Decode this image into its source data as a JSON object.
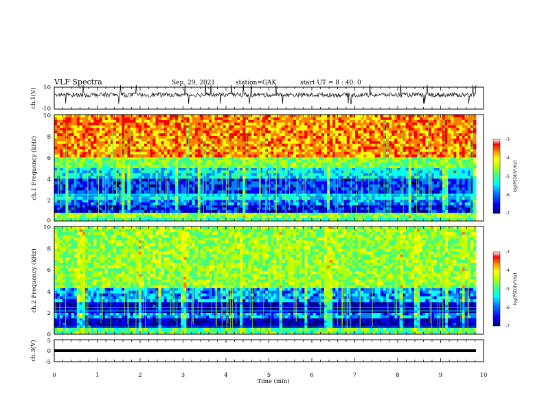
{
  "header": {
    "title": "VLF Spectra",
    "date": "Sep. 29, 2021",
    "station": "station=GAK",
    "start": "start UT = 8 : 40: 0"
  },
  "colors": {
    "spectrogram_scale": [
      "#00007f",
      "#0000ff",
      "#0080ff",
      "#00ffff",
      "#40ff80",
      "#c0ff00",
      "#ffff00",
      "#ff8000",
      "#ff0000",
      "#ffffff"
    ],
    "line": "#000000"
  },
  "chart_data": [
    {
      "type": "line",
      "name": "ch1-waveform",
      "ylabel": "ch.1(V)",
      "ylim": [
        -10,
        10
      ],
      "y_ticks": [
        "10",
        "-10"
      ],
      "x": [
        0,
        1,
        2,
        3,
        4,
        5,
        6,
        7,
        8,
        9,
        9.8
      ],
      "y": [
        3,
        3,
        3,
        3,
        3,
        3,
        3,
        3,
        3,
        3,
        3
      ]
    },
    {
      "type": "heatmap",
      "name": "ch1-spectrogram",
      "ylabel": "ch.1 Frequency (kHz)",
      "ylim": [
        0,
        10
      ],
      "y_ticks": [
        "0",
        "2",
        "4",
        "6",
        "8",
        "10"
      ],
      "colorbar": {
        "label": "log(PSD)(V²/Hz)",
        "range": [
          -7,
          -3
        ],
        "ticks": [
          "-3",
          "-4",
          "-5",
          "-6",
          "-7"
        ]
      },
      "bands_khz": [
        [
          0,
          0.3,
          -5.0
        ],
        [
          0.3,
          0.8,
          -4.6
        ],
        [
          0.8,
          1.5,
          -6.4
        ],
        [
          1.5,
          2.0,
          -6.0
        ],
        [
          2.0,
          2.6,
          -5.6
        ],
        [
          2.6,
          4.0,
          -6.2
        ],
        [
          4.0,
          5.0,
          -5.5
        ],
        [
          5.0,
          6.0,
          -4.8
        ],
        [
          6.0,
          10.0,
          -3.7
        ]
      ]
    },
    {
      "type": "heatmap",
      "name": "ch2-spectrogram",
      "ylabel": "ch.2 Frequency (kHz)",
      "ylim": [
        0,
        10
      ],
      "y_ticks": [
        "0",
        "2",
        "4",
        "6",
        "8",
        "10"
      ],
      "colorbar": {
        "label": "log(PSD)(V²/Hz)",
        "range": [
          -7,
          -3
        ],
        "ticks": [
          "-3",
          "-4",
          "-5",
          "-6",
          "-7"
        ]
      },
      "bands_khz": [
        [
          0,
          0.6,
          -5.0
        ],
        [
          0.6,
          1.5,
          -6.6
        ],
        [
          1.5,
          2.0,
          -5.8
        ],
        [
          2.0,
          3.0,
          -6.6
        ],
        [
          3.0,
          4.3,
          -5.8
        ],
        [
          4.3,
          10.0,
          -4.7
        ]
      ]
    },
    {
      "type": "line",
      "name": "ch3-waveform",
      "ylabel": "ch.3(V)",
      "ylim": [
        -5,
        5
      ],
      "y_ticks": [
        "5",
        "0",
        "-5"
      ],
      "x": [
        0,
        9.8
      ],
      "y": [
        -0.5,
        -0.5
      ]
    }
  ],
  "xaxis": {
    "label": "Time (min)",
    "xlim": [
      0,
      10
    ],
    "ticks": [
      "0",
      "1",
      "2",
      "3",
      "4",
      "5",
      "6",
      "7",
      "8",
      "9",
      "10"
    ]
  }
}
